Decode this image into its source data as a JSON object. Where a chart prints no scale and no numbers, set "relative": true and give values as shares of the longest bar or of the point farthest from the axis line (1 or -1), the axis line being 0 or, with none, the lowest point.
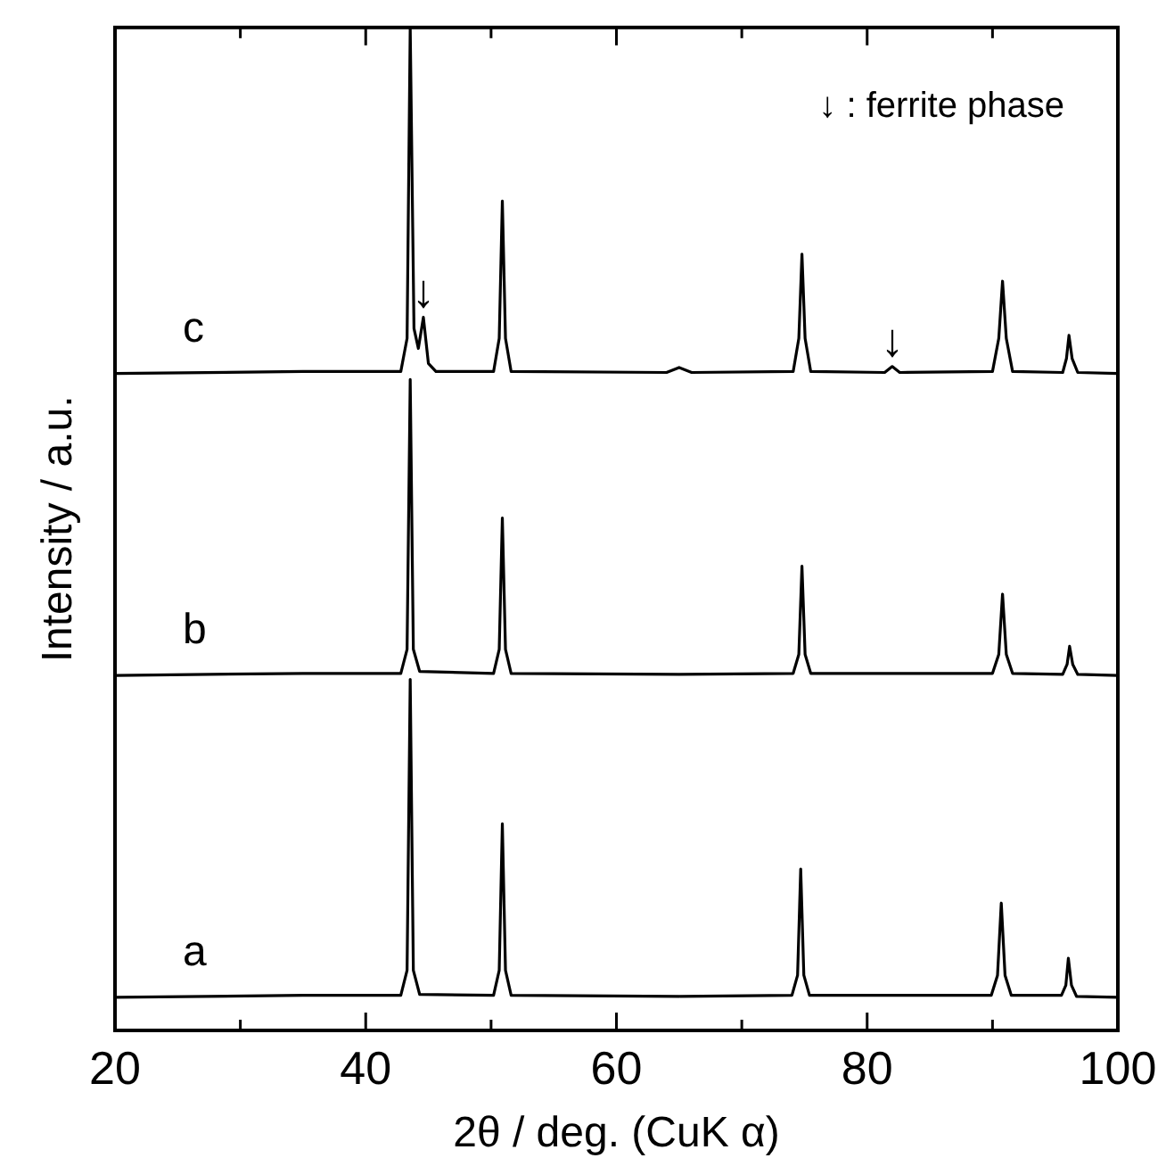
{
  "chart_data": {
    "type": "line",
    "relative": true,
    "xlabel": "2θ / deg. (CuK α)",
    "ylabel": "Intensity / a.u.",
    "xlim": [
      20,
      100
    ],
    "xticks": [
      20,
      {
        "value": 30,
        "label": null
      },
      40,
      {
        "value": 50,
        "label": null
      },
      60,
      {
        "value": 70,
        "label": null
      },
      80,
      {
        "value": 90,
        "label": null
      },
      100
    ],
    "tick_labels": "x",
    "grid": false,
    "legend": false,
    "marker": "none",
    "line_style": "solid",
    "series": [
      {
        "name": "a",
        "color": "#000000",
        "x": [
          20,
          35,
          42.8,
          43.3,
          43.55,
          43.8,
          44.3,
          50.2,
          50.65,
          50.9,
          51.15,
          51.6,
          65,
          74,
          74.45,
          74.7,
          74.95,
          75.4,
          89.9,
          90.4,
          90.7,
          91,
          91.5,
          95.5,
          95.85,
          96.05,
          96.3,
          96.7,
          100
        ],
        "values": [
          0.033,
          0.035,
          0.035,
          0.06,
          0.35,
          0.06,
          0.036,
          0.035,
          0.06,
          0.206,
          0.06,
          0.035,
          0.034,
          0.035,
          0.055,
          0.161,
          0.055,
          0.035,
          0.035,
          0.055,
          0.127,
          0.055,
          0.035,
          0.035,
          0.045,
          0.072,
          0.045,
          0.034,
          0.033
        ]
      },
      {
        "name": "b",
        "color": "#000000",
        "x": [
          20,
          35,
          42.8,
          43.3,
          43.55,
          43.8,
          44.3,
          50.2,
          50.65,
          50.9,
          51.15,
          51.6,
          65,
          74.1,
          74.55,
          74.8,
          75.05,
          75.5,
          90,
          90.5,
          90.8,
          91.1,
          91.6,
          95.6,
          95.95,
          96.15,
          96.4,
          96.8,
          100
        ],
        "values": [
          0.354,
          0.356,
          0.356,
          0.38,
          0.649,
          0.38,
          0.358,
          0.356,
          0.38,
          0.511,
          0.38,
          0.356,
          0.355,
          0.356,
          0.375,
          0.463,
          0.375,
          0.356,
          0.356,
          0.375,
          0.435,
          0.375,
          0.356,
          0.355,
          0.365,
          0.383,
          0.365,
          0.355,
          0.354
        ]
      },
      {
        "name": "c",
        "color": "#000000",
        "x": [
          20,
          35,
          42.8,
          43.3,
          43.55,
          43.85,
          44.2,
          44.6,
          45,
          45.6,
          50.2,
          50.65,
          50.9,
          51.15,
          51.6,
          64,
          65,
          66,
          74.1,
          74.55,
          74.8,
          75.05,
          75.5,
          81.4,
          82,
          82.6,
          90,
          90.5,
          90.8,
          91.1,
          91.6,
          95.6,
          95.9,
          96.1,
          96.35,
          96.8,
          100
        ],
        "values": [
          0.655,
          0.657,
          0.657,
          0.69,
          1,
          0.7,
          0.68,
          0.711,
          0.665,
          0.657,
          0.657,
          0.69,
          0.827,
          0.69,
          0.657,
          0.656,
          0.661,
          0.656,
          0.657,
          0.69,
          0.774,
          0.69,
          0.657,
          0.656,
          0.662,
          0.656,
          0.657,
          0.69,
          0.747,
          0.69,
          0.657,
          0.656,
          0.67,
          0.693,
          0.67,
          0.656,
          0.655
        ]
      }
    ],
    "annotations": [
      "↓ : ferrite phase",
      {
        "text": "↓",
        "x": 44.6,
        "y": 0.711
      },
      {
        "text": "↓",
        "x": 82,
        "y": 0.662
      }
    ]
  }
}
